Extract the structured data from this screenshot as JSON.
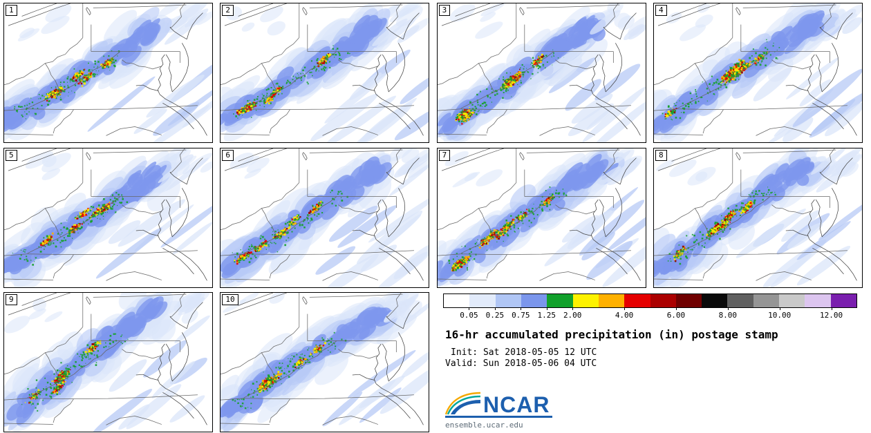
{
  "page": {
    "background": "#ffffff"
  },
  "panels": [
    {
      "label": "1"
    },
    {
      "label": "2"
    },
    {
      "label": "3"
    },
    {
      "label": "4"
    },
    {
      "label": "5"
    },
    {
      "label": "6"
    },
    {
      "label": "7"
    },
    {
      "label": "8"
    },
    {
      "label": "9"
    },
    {
      "label": "10"
    }
  ],
  "legend": {
    "title": "16-hr accumulated precipitation (in) postage stamp",
    "init": "Init: Sat 2018-05-05 12 UTC",
    "valid": "Valid: Sun 2018-05-06 04 UTC",
    "logo_text": "NCAR",
    "url": "ensemble.ucar.edu"
  },
  "colorbar": {
    "labels": [
      "0.05",
      "0.25",
      "0.75",
      "1.25",
      "2.00",
      "4.00",
      "6.00",
      "8.00",
      "10.00",
      "12.00"
    ],
    "label_boundaries": [
      1,
      2,
      3,
      4,
      5,
      7,
      9,
      11,
      13,
      15
    ],
    "colors": [
      "#ffffff",
      "#e2ebfb",
      "#b0c6f5",
      "#7b96ec",
      "#12a12c",
      "#fdf200",
      "#ffb100",
      "#e50000",
      "#ab0000",
      "#700000",
      "#0a0a0a",
      "#606060",
      "#959595",
      "#c9c9c9",
      "#dcc5ef",
      "#7a1fae"
    ]
  },
  "chart_data": {
    "type": "heatmap",
    "subtype": "ensemble postage-stamp precipitation maps",
    "title": "16-hr accumulated precipitation (in) postage stamp",
    "init_time": "Sat 2018-05-05 12 UTC",
    "valid_time": "Sun 2018-05-06 04 UTC",
    "units": "in",
    "members": [
      "1",
      "2",
      "3",
      "4",
      "5",
      "6",
      "7",
      "8",
      "9",
      "10"
    ],
    "grid": {
      "rows": 3,
      "cols": 4,
      "legend_occupies": "row 3, columns 3-4"
    },
    "colorbar_tick_values": [
      0.05,
      0.25,
      0.75,
      1.25,
      2.0,
      4.0,
      6.0,
      8.0,
      10.0,
      12.0
    ],
    "colorbar_colors": [
      "#ffffff",
      "#e2ebfb",
      "#b0c6f5",
      "#7b96ec",
      "#12a12c",
      "#fdf200",
      "#ffb100",
      "#e50000",
      "#ab0000",
      "#700000",
      "#0a0a0a",
      "#606060",
      "#959595",
      "#c9c9c9",
      "#dcc5ef",
      "#7a1fae"
    ],
    "region": "Ohio Valley / Appalachians / Mid-Atlantic coast",
    "pattern_summary": "All 10 members show a SW-NE band of moderate to heavy precipitation (blue envelope with embedded green/yellow/orange/red convective cores of roughly 1-6 in) stretching from Tennessee/Kentucky across West Virginia and Virginia into central Pennsylvania; thin light-blue SW-NE streaks cover the coastal plain southeast of the band."
  },
  "render": {
    "seed_base": 1013,
    "palette": {
      "trace": "#dbe6fa",
      "light": "#b7c9f6",
      "medium": "#7e97ee",
      "green": "#18a12e",
      "yellow": "#fcee00",
      "gold": "#ffb000",
      "red": "#e60000",
      "darkred": "#9b0000"
    },
    "map": {
      "lakes": [
        [
          [
            0.02,
            0.16
          ],
          [
            0.09,
            0.122
          ],
          [
            0.165,
            0.082
          ],
          [
            0.235,
            0.042
          ],
          [
            0.305,
            0.006
          ],
          [
            0.318,
            0.0
          ]
        ],
        [
          [
            0.085,
            0.092
          ],
          [
            0.155,
            0.052
          ],
          [
            0.225,
            0.014
          ],
          [
            0.252,
            0.0
          ]
        ],
        [
          [
            0.398,
            0.028
          ],
          [
            0.409,
            0.047
          ],
          [
            0.416,
            0.07
          ],
          [
            0.411,
            0.083
          ],
          [
            0.401,
            0.062
          ],
          [
            0.394,
            0.04
          ],
          [
            0.398,
            0.028
          ]
        ]
      ],
      "states": [
        [
          [
            0.428,
            0.032
          ],
          [
            0.6,
            0.026
          ],
          [
            0.76,
            0.018
          ],
          [
            0.875,
            0.01
          ]
        ],
        [
          [
            0.378,
            0.0
          ],
          [
            0.378,
            0.246
          ]
        ],
        [
          [
            0.418,
            0.152
          ],
          [
            0.418,
            0.346
          ]
        ],
        [
          [
            0.418,
            0.346
          ],
          [
            0.845,
            0.346
          ]
        ],
        [
          [
            0.845,
            0.346
          ],
          [
            0.845,
            0.428
          ]
        ],
        [
          [
            0.378,
            0.246
          ],
          [
            0.35,
            0.292
          ],
          [
            0.316,
            0.327
          ],
          [
            0.294,
            0.366
          ],
          [
            0.257,
            0.386
          ],
          [
            0.233,
            0.419
          ],
          [
            0.197,
            0.431
          ],
          [
            0.166,
            0.466
          ],
          [
            0.132,
            0.492
          ],
          [
            0.094,
            0.531
          ],
          [
            0.058,
            0.546
          ],
          [
            0.024,
            0.576
          ],
          [
            0.0,
            0.586
          ]
        ],
        [
          [
            0.197,
            0.431
          ],
          [
            0.214,
            0.472
          ],
          [
            0.226,
            0.517
          ],
          [
            0.246,
            0.557
          ],
          [
            0.259,
            0.601
          ],
          [
            0.272,
            0.638
          ]
        ],
        [
          [
            0.558,
            0.346
          ],
          [
            0.525,
            0.386
          ],
          [
            0.49,
            0.416
          ],
          [
            0.466,
            0.453
          ],
          [
            0.43,
            0.479
          ],
          [
            0.403,
            0.516
          ],
          [
            0.366,
            0.546
          ],
          [
            0.336,
            0.586
          ],
          [
            0.303,
            0.613
          ],
          [
            0.272,
            0.638
          ]
        ],
        [
          [
            0.272,
            0.638
          ],
          [
            0.232,
            0.667
          ],
          [
            0.194,
            0.697
          ],
          [
            0.154,
            0.724
          ],
          [
            0.112,
            0.756
          ]
        ],
        [
          [
            0.0,
            0.772
          ],
          [
            0.056,
            0.766
          ],
          [
            0.112,
            0.76
          ]
        ],
        [
          [
            0.112,
            0.76
          ],
          [
            0.3,
            0.764
          ],
          [
            0.5,
            0.762
          ],
          [
            0.7,
            0.752
          ],
          [
            0.93,
            0.735
          ]
        ],
        [
          [
            0.334,
            0.764
          ],
          [
            0.318,
            0.8
          ],
          [
            0.288,
            0.832
          ],
          [
            0.27,
            0.868
          ],
          [
            0.243,
            0.9
          ],
          [
            0.236,
            0.936
          ]
        ],
        [
          [
            0.0,
            0.94
          ],
          [
            0.118,
            0.944
          ],
          [
            0.236,
            0.948
          ]
        ],
        [
          [
            0.49,
            0.952
          ],
          [
            0.558,
            0.903
          ],
          [
            0.628,
            0.888
          ],
          [
            0.695,
            0.914
          ],
          [
            0.757,
            0.948
          ]
        ],
        [
          [
            0.868,
            0.0
          ],
          [
            0.845,
            0.046
          ],
          [
            0.852,
            0.096
          ],
          [
            0.828,
            0.136
          ],
          [
            0.806,
            0.17
          ],
          [
            0.797,
            0.172
          ]
        ],
        [
          [
            0.757,
            0.452
          ],
          [
            0.714,
            0.472
          ],
          [
            0.682,
            0.458
          ],
          [
            0.648,
            0.452
          ],
          [
            0.618,
            0.432
          ],
          [
            0.586,
            0.428
          ],
          [
            0.566,
            0.406
          ]
        ]
      ],
      "coast": [
        [
          [
            0.955,
            0.068
          ],
          [
            0.928,
            0.108
          ],
          [
            0.905,
            0.155
          ],
          [
            0.888,
            0.208
          ],
          [
            0.878,
            0.258
          ]
        ],
        [
          [
            0.878,
            0.258
          ],
          [
            0.846,
            0.23
          ],
          [
            0.818,
            0.202
          ],
          [
            0.797,
            0.172
          ]
        ],
        [
          [
            0.855,
            0.285
          ],
          [
            0.872,
            0.332
          ],
          [
            0.884,
            0.385
          ],
          [
            0.886,
            0.44
          ],
          [
            0.876,
            0.498
          ],
          [
            0.858,
            0.552
          ],
          [
            0.832,
            0.6
          ],
          [
            0.808,
            0.636
          ],
          [
            0.798,
            0.578
          ],
          [
            0.804,
            0.522
          ],
          [
            0.792,
            0.468
          ],
          [
            0.798,
            0.422
          ],
          [
            0.788,
            0.392
          ],
          [
            0.778,
            0.368
          ]
        ],
        [
          [
            0.772,
            0.368
          ],
          [
            0.757,
            0.398
          ],
          [
            0.764,
            0.438
          ],
          [
            0.748,
            0.468
          ],
          [
            0.757,
            0.508
          ],
          [
            0.742,
            0.548
          ],
          [
            0.752,
            0.588
          ],
          [
            0.738,
            0.622
          ],
          [
            0.748,
            0.656
          ]
        ],
        [
          [
            0.748,
            0.656
          ],
          [
            0.775,
            0.688
          ],
          [
            0.812,
            0.718
          ],
          [
            0.852,
            0.752
          ],
          [
            0.895,
            0.798
          ],
          [
            0.932,
            0.852
          ],
          [
            0.958,
            0.905
          ],
          [
            0.975,
            0.952
          ]
        ],
        [
          [
            0.762,
            0.718
          ],
          [
            0.802,
            0.752
          ],
          [
            0.845,
            0.798
          ],
          [
            0.882,
            0.852
          ],
          [
            0.912,
            0.905
          ]
        ],
        [
          [
            0.742,
            0.63
          ],
          [
            0.702,
            0.615
          ],
          [
            0.668,
            0.588
          ],
          [
            0.634,
            0.592
          ]
        ]
      ]
    }
  }
}
